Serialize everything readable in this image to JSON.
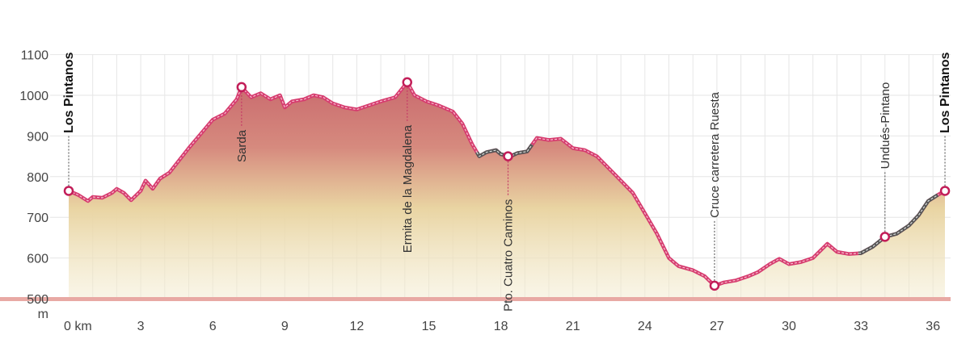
{
  "chart_data": {
    "type": "area",
    "title": "",
    "xlabel": "km",
    "ylabel": "m",
    "xlim": [
      0,
      37
    ],
    "ylim": [
      500,
      1100
    ],
    "x_ticks": [
      0,
      3,
      6,
      9,
      12,
      15,
      18,
      21,
      24,
      27,
      30,
      33,
      36
    ],
    "x_tick_labels": [
      "0 km",
      "3",
      "6",
      "9",
      "12",
      "15",
      "18",
      "21",
      "24",
      "27",
      "30",
      "33",
      "36"
    ],
    "y_ticks": [
      500,
      600,
      700,
      800,
      900,
      1000,
      1100
    ],
    "y_tick_labels": [
      "500",
      "600",
      "700",
      "800",
      "900",
      "1000",
      "1100"
    ],
    "y_unit": "m",
    "grid": true,
    "colors": {
      "line_pink": "#d63c6f",
      "line_gray": "#555555",
      "fill_top": "#c96a6e",
      "fill_mid": "#e9d4a2",
      "fill_bottom": "#f3ecd0",
      "baseline": "#e8a9a4"
    },
    "profile": [
      [
        0,
        765
      ],
      [
        0.4,
        755
      ],
      [
        0.8,
        740
      ],
      [
        1.0,
        750
      ],
      [
        1.4,
        748
      ],
      [
        1.8,
        760
      ],
      [
        2.0,
        770
      ],
      [
        2.3,
        760
      ],
      [
        2.6,
        742
      ],
      [
        3.0,
        765
      ],
      [
        3.2,
        790
      ],
      [
        3.5,
        770
      ],
      [
        3.8,
        795
      ],
      [
        4.2,
        810
      ],
      [
        4.6,
        840
      ],
      [
        5.0,
        870
      ],
      [
        5.5,
        905
      ],
      [
        6.0,
        940
      ],
      [
        6.5,
        955
      ],
      [
        7.0,
        990
      ],
      [
        7.2,
        1020
      ],
      [
        7.6,
        995
      ],
      [
        8.0,
        1005
      ],
      [
        8.4,
        990
      ],
      [
        8.8,
        1000
      ],
      [
        9.0,
        970
      ],
      [
        9.3,
        985
      ],
      [
        9.8,
        990
      ],
      [
        10.2,
        1000
      ],
      [
        10.6,
        995
      ],
      [
        11.0,
        980
      ],
      [
        11.5,
        970
      ],
      [
        12.0,
        965
      ],
      [
        12.5,
        975
      ],
      [
        13.0,
        985
      ],
      [
        13.6,
        995
      ],
      [
        14.1,
        1032
      ],
      [
        14.4,
        1000
      ],
      [
        14.9,
        985
      ],
      [
        15.4,
        975
      ],
      [
        16.0,
        960
      ],
      [
        16.4,
        930
      ],
      [
        16.8,
        880
      ],
      [
        17.1,
        850
      ],
      [
        17.4,
        860
      ],
      [
        17.8,
        865
      ],
      [
        18.0,
        855
      ],
      [
        18.4,
        850
      ],
      [
        18.7,
        858
      ],
      [
        19.1,
        862
      ],
      [
        19.5,
        895
      ],
      [
        20.0,
        890
      ],
      [
        20.5,
        893
      ],
      [
        21.0,
        870
      ],
      [
        21.5,
        865
      ],
      [
        22.0,
        850
      ],
      [
        22.5,
        820
      ],
      [
        23.0,
        790
      ],
      [
        23.5,
        760
      ],
      [
        24.0,
        710
      ],
      [
        24.5,
        660
      ],
      [
        25.0,
        600
      ],
      [
        25.4,
        580
      ],
      [
        26.0,
        570
      ],
      [
        26.5,
        555
      ],
      [
        26.9,
        532
      ],
      [
        27.3,
        540
      ],
      [
        27.8,
        545
      ],
      [
        28.3,
        555
      ],
      [
        28.7,
        565
      ],
      [
        29.2,
        585
      ],
      [
        29.6,
        598
      ],
      [
        30.0,
        585
      ],
      [
        30.5,
        590
      ],
      [
        31.0,
        600
      ],
      [
        31.6,
        635
      ],
      [
        32.0,
        615
      ],
      [
        32.5,
        610
      ],
      [
        33.0,
        612
      ],
      [
        33.5,
        628
      ],
      [
        34.0,
        652
      ],
      [
        34.5,
        660
      ],
      [
        35.0,
        680
      ],
      [
        35.4,
        705
      ],
      [
        35.8,
        740
      ],
      [
        36.2,
        755
      ],
      [
        36.5,
        765
      ]
    ],
    "gray_segments": [
      [
        17.0,
        19.3
      ],
      [
        32.9,
        36.2
      ]
    ],
    "waypoints": [
      {
        "name": "Los Pintanos",
        "km": 0,
        "elev": 765,
        "bold": true,
        "label_side": "above"
      },
      {
        "name": "Sarda",
        "km": 7.2,
        "elev": 1020,
        "bold": false,
        "label_side": "below"
      },
      {
        "name": "Ermita de la Magdalena",
        "km": 14.1,
        "elev": 1032,
        "bold": false,
        "label_side": "below"
      },
      {
        "name": "Pto. Cuatro Caminos",
        "km": 18.3,
        "elev": 850,
        "bold": false,
        "label_side": "below"
      },
      {
        "name": "Cruce carretera Ruesta",
        "km": 26.9,
        "elev": 532,
        "bold": false,
        "label_side": "above"
      },
      {
        "name": "Undués-Pintano",
        "km": 34.0,
        "elev": 652,
        "bold": false,
        "label_side": "above"
      },
      {
        "name": "Los Pintanos",
        "km": 36.5,
        "elev": 765,
        "bold": true,
        "label_side": "above"
      }
    ]
  }
}
